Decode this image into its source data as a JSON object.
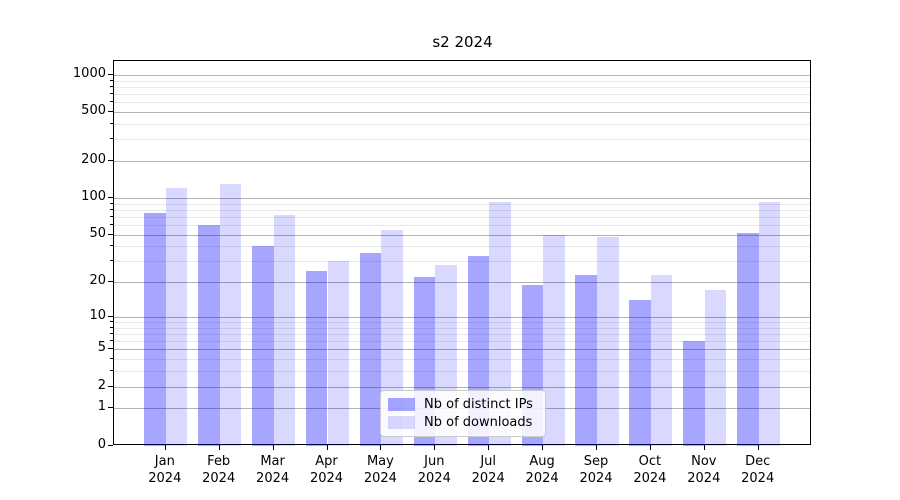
{
  "title": "s2 2024",
  "legend": {
    "position": "lower center",
    "items": [
      {
        "label": "Nb of distinct IPs",
        "color": "rgba(0,0,255,0.35)",
        "color_on_white": "#a6a6ff"
      },
      {
        "label": "Nb of downloads",
        "color": "rgba(0,0,255,0.15)",
        "color_on_white": "#d9d9ff"
      }
    ]
  },
  "chart_data": {
    "type": "bar",
    "title": "s2 2024",
    "categories": [
      "Jan 2024",
      "Feb 2024",
      "Mar 2024",
      "Apr 2024",
      "May 2024",
      "Jun 2024",
      "Jul 2024",
      "Aug 2024",
      "Sep 2024",
      "Oct 2024",
      "Nov 2024",
      "Dec 2024"
    ],
    "series": [
      {
        "name": "Nb of distinct IPs",
        "color": "rgba(0,0,255,0.35)",
        "values": [
          75,
          60,
          40,
          25,
          35,
          22,
          33,
          19,
          23,
          14,
          6,
          52
        ]
      },
      {
        "name": "Nb of downloads",
        "color": "rgba(0,0,255,0.15)",
        "values": [
          120,
          130,
          72,
          30,
          55,
          28,
          92,
          50,
          48,
          23,
          17,
          92
        ]
      }
    ],
    "xlabel": "",
    "ylabel": "",
    "y_scale": "log1p",
    "ylim": [
      0,
      1300
    ],
    "y_major_ticks": [
      0,
      1,
      2,
      5,
      10,
      20,
      50,
      100,
      200,
      500,
      1000
    ],
    "y_minor_ticks": [
      3,
      4,
      6,
      7,
      8,
      9,
      30,
      40,
      60,
      70,
      80,
      90,
      300,
      400,
      600,
      700,
      800,
      900
    ],
    "grid": "horizontal major + minor",
    "legend_position": "lower center"
  },
  "colors": {
    "background": "#ffffff",
    "bar_dark": "rgba(0,0,255,0.35)",
    "bar_light": "rgba(0,0,255,0.15)",
    "grid_major": "#b2b2b2",
    "grid_minor": "#e8e8e8",
    "axis": "#000000",
    "legend_border": "#cccccc"
  }
}
